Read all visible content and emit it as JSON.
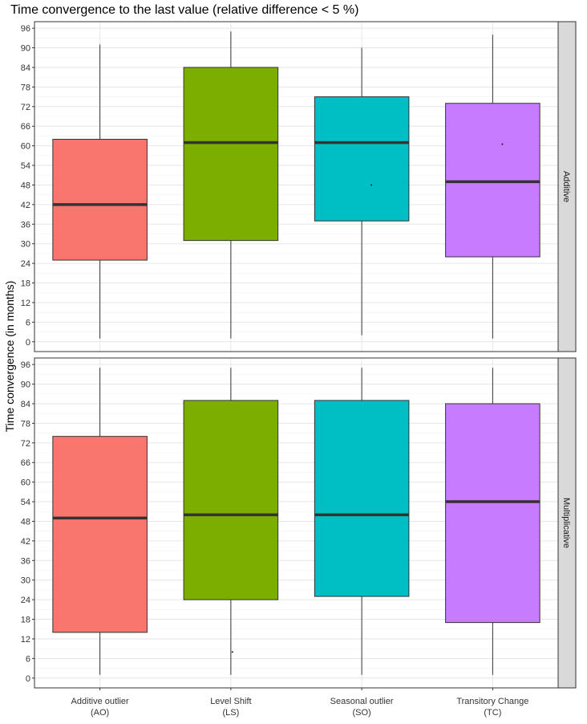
{
  "chart_data": {
    "type": "boxplot",
    "title": "Time convergence to the last value (relative difference < 5 %)",
    "ylabel": "Time convergence (in months)",
    "xlabel": "",
    "ylim": [
      -3,
      98
    ],
    "y_ticks": [
      0,
      6,
      12,
      18,
      24,
      30,
      36,
      42,
      48,
      54,
      60,
      66,
      72,
      78,
      84,
      90,
      96
    ],
    "grid": true,
    "categories": [
      {
        "line1": "Additive outlier",
        "line2": "(AO)",
        "color": "#F8766D"
      },
      {
        "line1": "Level Shift",
        "line2": "(LS)",
        "color": "#7CAE00"
      },
      {
        "line1": "Seasonal outlier",
        "line2": "(SO)",
        "color": "#00BFC4"
      },
      {
        "line1": "Transitory Change",
        "line2": "(TC)",
        "color": "#C77CFF"
      }
    ],
    "panels": [
      {
        "label": "Additive",
        "boxes": [
          {
            "whisker_low": 1,
            "q1": 25,
            "median": 42,
            "q3": 62,
            "whisker_high": 91,
            "outliers": []
          },
          {
            "whisker_low": 1,
            "q1": 31,
            "median": 61,
            "q3": 84,
            "whisker_high": 95,
            "outliers": []
          },
          {
            "whisker_low": 2,
            "q1": 37,
            "median": 61,
            "q3": 75,
            "whisker_high": 90,
            "outliers": [
              48
            ]
          },
          {
            "whisker_low": 1,
            "q1": 26,
            "median": 49,
            "q3": 73,
            "whisker_high": 94,
            "outliers": [
              60.5
            ]
          }
        ]
      },
      {
        "label": "Multiplicative",
        "boxes": [
          {
            "whisker_low": 1,
            "q1": 14,
            "median": 49,
            "q3": 74,
            "whisker_high": 95,
            "outliers": []
          },
          {
            "whisker_low": 1,
            "q1": 24,
            "median": 50,
            "q3": 85,
            "whisker_high": 95,
            "outliers": [
              8
            ]
          },
          {
            "whisker_low": 1,
            "q1": 25,
            "median": 50,
            "q3": 85,
            "whisker_high": 95,
            "outliers": []
          },
          {
            "whisker_low": 1,
            "q1": 17,
            "median": 54,
            "q3": 84,
            "whisker_high": 95,
            "outliers": []
          }
        ]
      }
    ]
  }
}
